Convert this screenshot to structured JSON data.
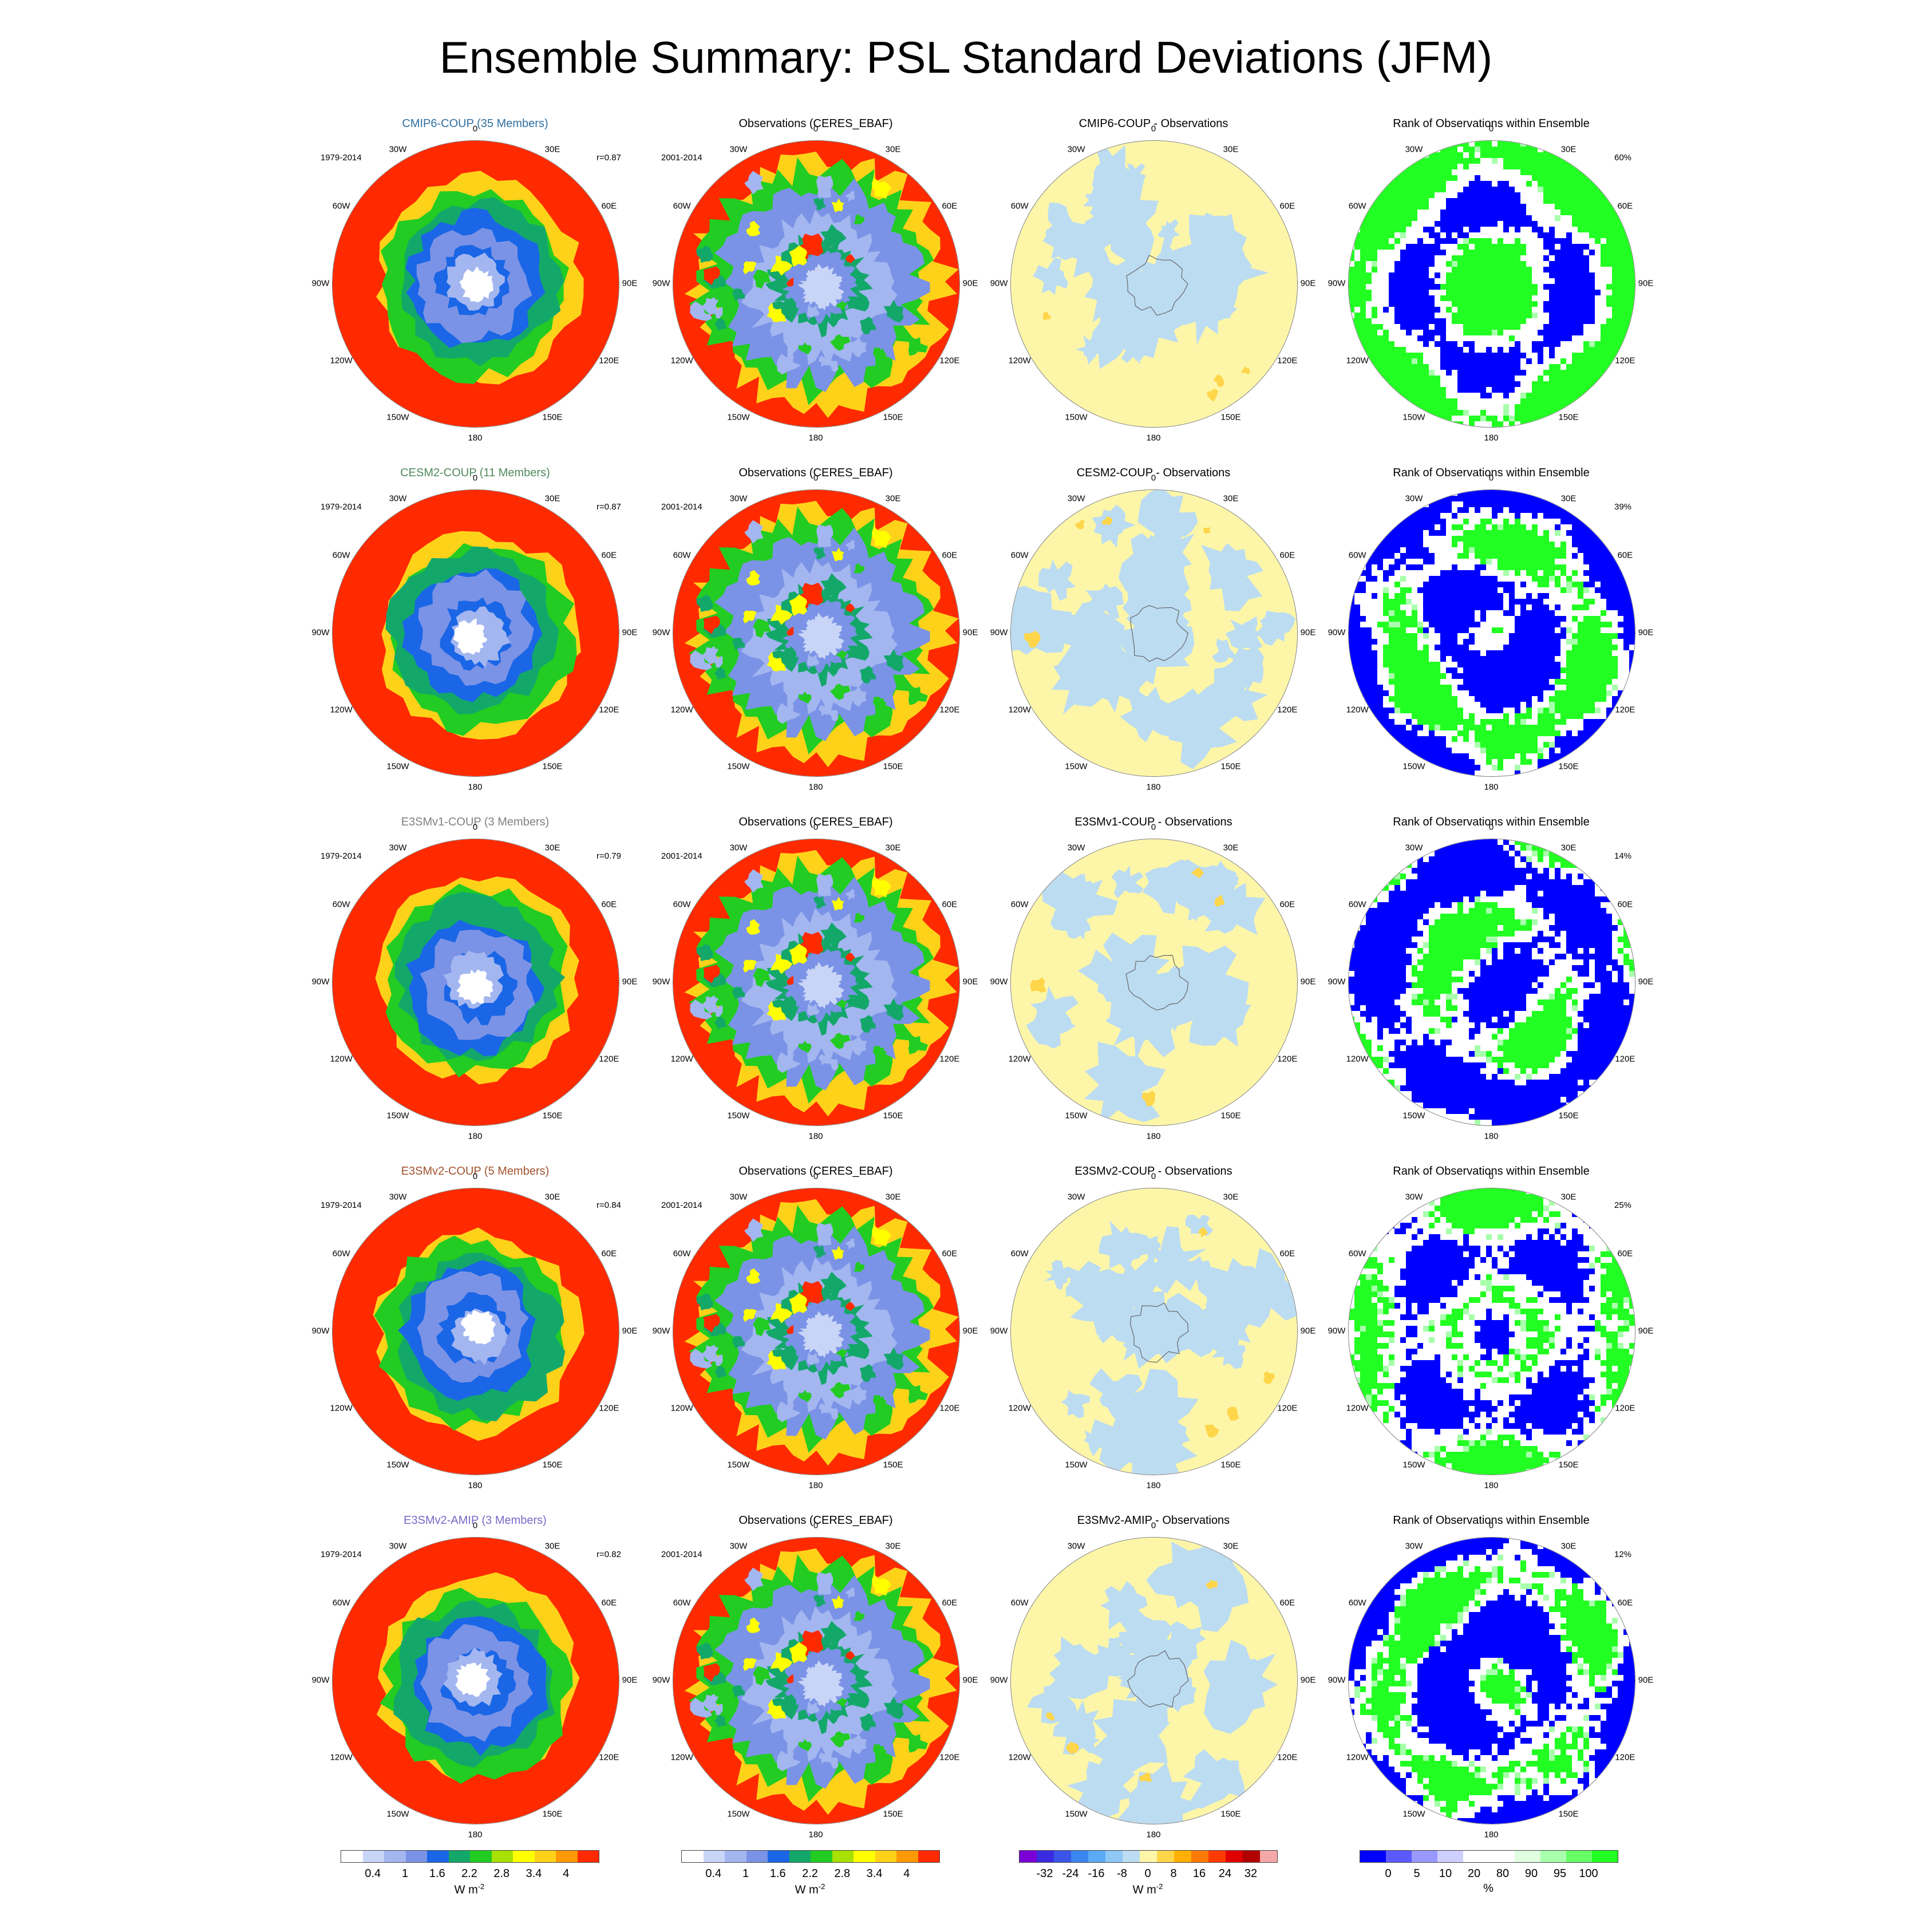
{
  "title": "Ensemble Summary: PSL Standard Deviations (JFM)",
  "lon_labels": [
    "0",
    "30E",
    "60E",
    "90E",
    "120E",
    "150E",
    "180",
    "150W",
    "120W",
    "90W",
    "60W",
    "30W"
  ],
  "columns": [
    {
      "kind": "model"
    },
    {
      "kind": "obs"
    },
    {
      "kind": "diff"
    },
    {
      "kind": "rank"
    }
  ],
  "rows": [
    {
      "model_title": "CMIP6-COUP (35 Members)",
      "title_color": "#2f6fa0",
      "years": "1979-2014",
      "r": "r=0.87",
      "obs_title": "Observations (CERES_EBAF)",
      "obs_years": "2001-2014",
      "diff_title": "CMIP6-COUP - Observations",
      "rank_title": "Rank of Observations within Ensemble",
      "rank_pct": "60%"
    },
    {
      "model_title": "CESM2-COUP (11 Members)",
      "title_color": "#4f8a5c",
      "years": "1979-2014",
      "r": "r=0.87",
      "obs_title": "Observations (CERES_EBAF)",
      "obs_years": "2001-2014",
      "diff_title": "CESM2-COUP - Observations",
      "rank_title": "Rank of Observations within Ensemble",
      "rank_pct": "39%"
    },
    {
      "model_title": "E3SMv1-COUP (3 Members)",
      "title_color": "#808080",
      "years": "1979-2014",
      "r": "r=0.79",
      "obs_title": "Observations (CERES_EBAF)",
      "obs_years": "2001-2014",
      "diff_title": "E3SMv1-COUP - Observations",
      "rank_title": "Rank of Observations within Ensemble",
      "rank_pct": "14%"
    },
    {
      "model_title": "E3SMv2-COUP (5 Members)",
      "title_color": "#a0522d",
      "years": "1979-2014",
      "r": "r=0.84",
      "obs_title": "Observations (CERES_EBAF)",
      "obs_years": "2001-2014",
      "diff_title": "E3SMv2-COUP - Observations",
      "rank_title": "Rank of Observations within Ensemble",
      "rank_pct": "25%"
    },
    {
      "model_title": "E3SMv2-AMIP (3 Members)",
      "title_color": "#7b68c9",
      "years": "1979-2014",
      "r": "r=0.82",
      "obs_title": "Observations (CERES_EBAF)",
      "obs_years": "2001-2014",
      "diff_title": "E3SMv2-AMIP - Observations",
      "rank_title": "Rank of Observations within Ensemble",
      "rank_pct": "12%"
    }
  ],
  "colorbars": [
    {
      "name": "std",
      "colors": [
        "#ffffff",
        "#c9d5f7",
        "#a3b6f0",
        "#7b93e6",
        "#1a66e6",
        "#13a86a",
        "#22cc22",
        "#a8e000",
        "#ffff00",
        "#ffd21a",
        "#ff9900",
        "#ff2a00"
      ],
      "ticks": [
        "0.4",
        "1",
        "1.6",
        "2.2",
        "2.8",
        "3.4",
        "4"
      ],
      "unit": "W m",
      "unit_sup": "-2"
    },
    {
      "name": "std-obs",
      "colors": [
        "#ffffff",
        "#c9d5f7",
        "#a3b6f0",
        "#7b93e6",
        "#1a66e6",
        "#13a86a",
        "#22cc22",
        "#a8e000",
        "#ffff00",
        "#ffd21a",
        "#ff9900",
        "#ff2a00"
      ],
      "ticks": [
        "0.4",
        "1",
        "1.6",
        "2.2",
        "2.8",
        "3.4",
        "4"
      ],
      "unit": "W m",
      "unit_sup": "-2"
    },
    {
      "name": "diff",
      "colors": [
        "#7a00d6",
        "#3b2be0",
        "#3a55e8",
        "#3a86f0",
        "#5aaaf5",
        "#8fc8f7",
        "#bcdcf2",
        "#fdf6a8",
        "#ffd54a",
        "#ffb000",
        "#ff7a00",
        "#ff3a00",
        "#e00000",
        "#b00000",
        "#f4a8a8"
      ],
      "ticks": [
        "-32",
        "-24",
        "-16",
        "-8",
        "0",
        "8",
        "16",
        "24",
        "32"
      ],
      "unit": "W m",
      "unit_sup": "-2"
    },
    {
      "name": "rank",
      "colors": [
        "#0000ff",
        "#5a5aff",
        "#9898ff",
        "#cfcfff",
        "#ffffff",
        "#ffffff",
        "#dfffe0",
        "#a8ffac",
        "#66ff66",
        "#22ff22"
      ],
      "ticks": [
        "0",
        "5",
        "10",
        "20",
        "80",
        "90",
        "95",
        "100"
      ],
      "unit": "%",
      "unit_sup": ""
    }
  ]
}
